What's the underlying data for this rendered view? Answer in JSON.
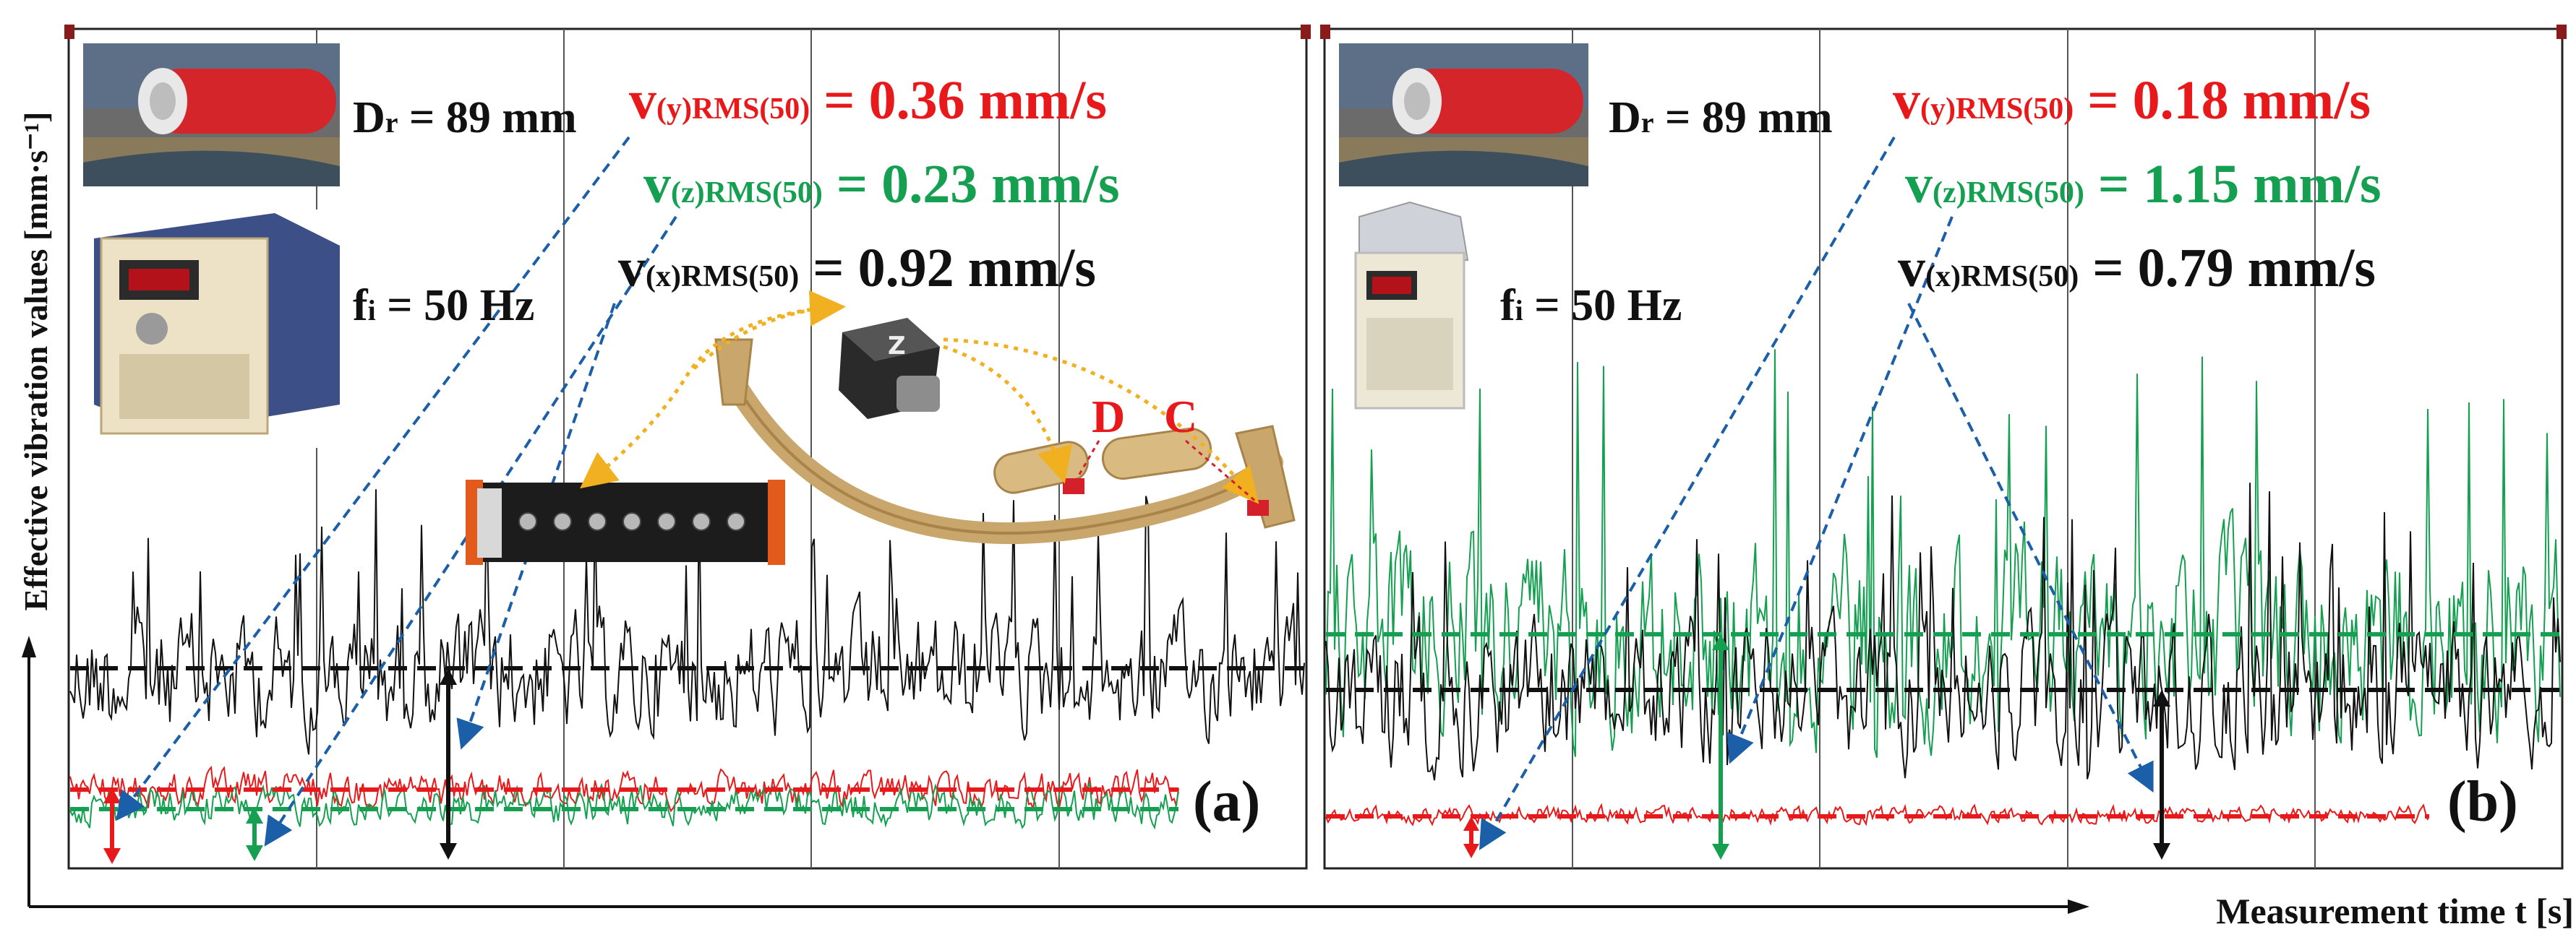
{
  "figure": {
    "ylabel": "Effective vibration values [mm·s⁻¹]",
    "xlabel": "Measurement time t [s]"
  },
  "colors": {
    "y": "#e8191a",
    "z": "#14a050",
    "x": "#111111",
    "arrow": "#1a5fa8",
    "sensor": "#f0b020"
  },
  "panels": [
    {
      "label": "(a)",
      "roller_diameter": {
        "symbol": "D",
        "sub": "r",
        "rest": " = 89 mm"
      },
      "frequency": {
        "symbol": "f",
        "sub": "i",
        "rest": " = 50 Hz"
      },
      "rms": [
        {
          "axis": "y",
          "sub": "(y)RMS(50)",
          "value": " = 0.36 mm/s"
        },
        {
          "axis": "z",
          "sub": "(z)RMS(50)",
          "value": " = 0.23 mm/s"
        },
        {
          "axis": "x",
          "sub": "(x)RMS(50)",
          "value": " = 0.92 mm/s"
        }
      ],
      "sensor_points": [
        "D",
        "C"
      ],
      "chart_data": {
        "type": "line",
        "series": [
          {
            "axis": "x",
            "rms": 0.92
          },
          {
            "axis": "y",
            "rms": 0.36
          },
          {
            "axis": "z",
            "rms": 0.23
          }
        ]
      }
    },
    {
      "label": "(b)",
      "roller_diameter": {
        "symbol": "D",
        "sub": "r",
        "rest": " = 89 mm"
      },
      "frequency": {
        "symbol": "f",
        "sub": "i",
        "rest": " = 50 Hz"
      },
      "rms": [
        {
          "axis": "y",
          "sub": "(y)RMS(50)",
          "value": " = 0.18 mm/s"
        },
        {
          "axis": "z",
          "sub": "(z)RMS(50)",
          "value": " = 1.15 mm/s"
        },
        {
          "axis": "x",
          "sub": "(x)RMS(50)",
          "value": " = 0.79 mm/s"
        }
      ],
      "chart_data": {
        "type": "line",
        "series": [
          {
            "axis": "z",
            "rms": 1.15
          },
          {
            "axis": "x",
            "rms": 0.79
          },
          {
            "axis": "y",
            "rms": 0.18
          }
        ]
      }
    }
  ]
}
